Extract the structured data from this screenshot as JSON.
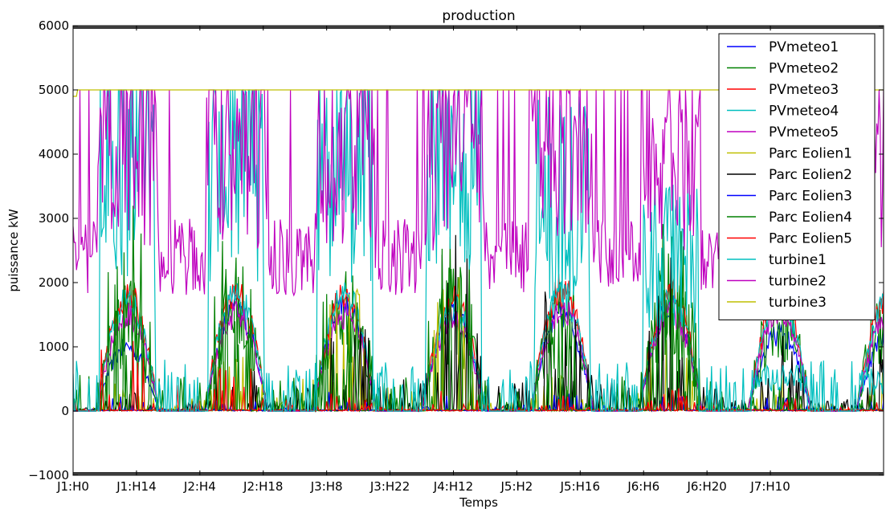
{
  "chart_data": {
    "type": "line",
    "title": "production",
    "xlabel": "Temps",
    "ylabel": "puissance kW",
    "ylim": [
      -1000,
      6000
    ],
    "xlim": [
      0,
      179
    ],
    "yticks": [
      -1000,
      0,
      1000,
      2000,
      3000,
      4000,
      5000,
      6000
    ],
    "ytick_labels": [
      "−1000",
      "0",
      "1000",
      "2000",
      "3000",
      "4000",
      "5000",
      "6000"
    ],
    "xticks": [
      0,
      14,
      28,
      42,
      56,
      70,
      84,
      98,
      112,
      126,
      140,
      154
    ],
    "xtick_labels": [
      "J1:H0",
      "J1:H14",
      "J2:H4",
      "J2:H18",
      "J3:H8",
      "J3:H22",
      "J4:H12",
      "J5:H2",
      "J5:H16",
      "J6:H6",
      "J6:H20",
      "J7:H10"
    ],
    "grid": false,
    "legend_position": "top-right",
    "series": [
      {
        "name": "PVmeteo1",
        "color": "#0000ff",
        "generator": "solar",
        "peaks": [
          1000,
          1600,
          1700,
          1500,
          1500,
          1600,
          1200
        ]
      },
      {
        "name": "PVmeteo2",
        "color": "#008000",
        "generator": "solar_noisy",
        "peaks": [
          1700,
          1900,
          1800,
          1800,
          1700,
          2000,
          1900
        ]
      },
      {
        "name": "PVmeteo3",
        "color": "#ff0000",
        "generator": "solar",
        "peaks": [
          1800,
          1850,
          1800,
          1700,
          1900,
          1850,
          1800
        ]
      },
      {
        "name": "PVmeteo4",
        "color": "#00bfbf",
        "generator": "solar",
        "peaks": [
          1700,
          1800,
          1850,
          1600,
          1800,
          1750,
          1700
        ]
      },
      {
        "name": "PVmeteo5",
        "color": "#bf00bf",
        "generator": "solar",
        "peaks": [
          1500,
          1500,
          1500,
          1400,
          1600,
          1550,
          1500
        ]
      },
      {
        "name": "Parc Eolien1",
        "color": "#bfbf00",
        "generator": "wind_low",
        "peaks": [
          400,
          900,
          1800,
          1700,
          600,
          1000,
          500
        ]
      },
      {
        "name": "Parc Eolien2",
        "color": "#000000",
        "generator": "wind_spiky",
        "peaks": [
          300,
          1000,
          2000,
          2600,
          2500,
          2000,
          1000
        ]
      },
      {
        "name": "Parc Eolien3",
        "color": "#0000ff",
        "generator": "wind_low",
        "peaks": [
          200,
          200,
          300,
          200,
          300,
          200,
          200
        ]
      },
      {
        "name": "Parc Eolien4",
        "color": "#008000",
        "generator": "wind_spiky",
        "peaks": [
          2900,
          2700,
          2600,
          2700,
          1600,
          2700,
          600
        ]
      },
      {
        "name": "Parc Eolien5",
        "color": "#ff0000",
        "generator": "wind_low",
        "peaks": [
          1700,
          700,
          300,
          300,
          200,
          300,
          200
        ]
      },
      {
        "name": "turbine1",
        "color": "#00bfbf",
        "generator": "turbine_mid",
        "peaks": [
          5000,
          5000,
          5000,
          5000,
          4100,
          3000,
          600
        ]
      },
      {
        "name": "turbine2",
        "color": "#bf00bf",
        "generator": "turbine_high",
        "peaks": [
          5000,
          5000,
          5000,
          5000,
          5000,
          5000,
          5000
        ]
      },
      {
        "name": "turbine3",
        "color": "#bfbf00",
        "generator": "flat",
        "peaks": [
          5000,
          5000,
          5000,
          5000,
          5000,
          5000,
          5000
        ]
      }
    ]
  }
}
